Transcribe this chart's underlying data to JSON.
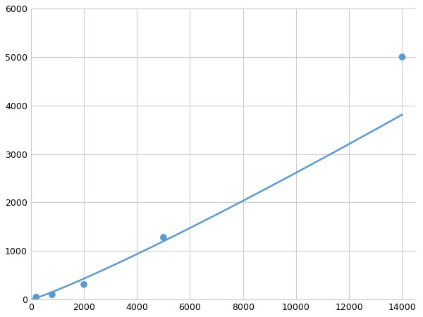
{
  "x": [
    200,
    800,
    2000,
    5000,
    14000
  ],
  "y": [
    50,
    100,
    310,
    1280,
    5000
  ],
  "line_color": "#5b9bd5",
  "marker_color": "#5b9bd5",
  "marker_size": 7,
  "line_width": 1.8,
  "xlim": [
    0,
    14500
  ],
  "ylim": [
    0,
    6000
  ],
  "xticks": [
    0,
    2000,
    4000,
    6000,
    8000,
    10000,
    12000,
    14000
  ],
  "yticks": [
    0,
    1000,
    2000,
    3000,
    4000,
    5000,
    6000
  ],
  "xtick_labels": [
    "0",
    "2000",
    "4000",
    "6000",
    "8000",
    "10000",
    "12000",
    "14000"
  ],
  "ytick_labels": [
    "0",
    "1000",
    "2000",
    "3000",
    "4000",
    "5000",
    "6000"
  ],
  "grid_color": "#cccccc",
  "background_color": "#ffffff",
  "figsize": [
    6.0,
    4.5
  ],
  "dpi": 100
}
